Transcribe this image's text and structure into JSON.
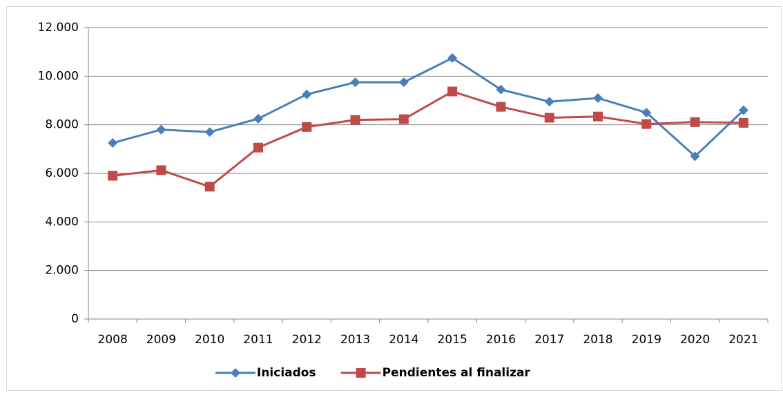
{
  "chart_data": {
    "type": "line",
    "categories": [
      "2008",
      "2009",
      "2010",
      "2011",
      "2012",
      "2013",
      "2014",
      "2015",
      "2016",
      "2017",
      "2018",
      "2019",
      "2020",
      "2021"
    ],
    "series": [
      {
        "name": "Iniciados",
        "color": "#4a7ebb",
        "marker": "diamond",
        "values": [
          7250,
          7800,
          7700,
          8250,
          9250,
          9750,
          9750,
          10750,
          9450,
          8950,
          9100,
          8500,
          6700,
          8600
        ]
      },
      {
        "name": "Pendientes al finalizar",
        "color": "#be4b48",
        "marker": "square",
        "values": [
          5900,
          6130,
          5450,
          7060,
          7910,
          8200,
          8230,
          9370,
          8740,
          8290,
          8340,
          8030,
          8110,
          8080
        ]
      }
    ],
    "ylim": [
      0,
      12000
    ],
    "yticks": [
      0,
      {
        "value": 2000,
        "label": "2.000"
      },
      {
        "value": 4000,
        "label": "4.000"
      },
      {
        "value": 6000,
        "label": "6.000"
      },
      {
        "value": 8000,
        "label": "8.000"
      },
      {
        "value": 10000,
        "label": "10.000"
      },
      {
        "value": 12000,
        "label": "12.000"
      }
    ],
    "grid": true,
    "legend": "bottom"
  }
}
